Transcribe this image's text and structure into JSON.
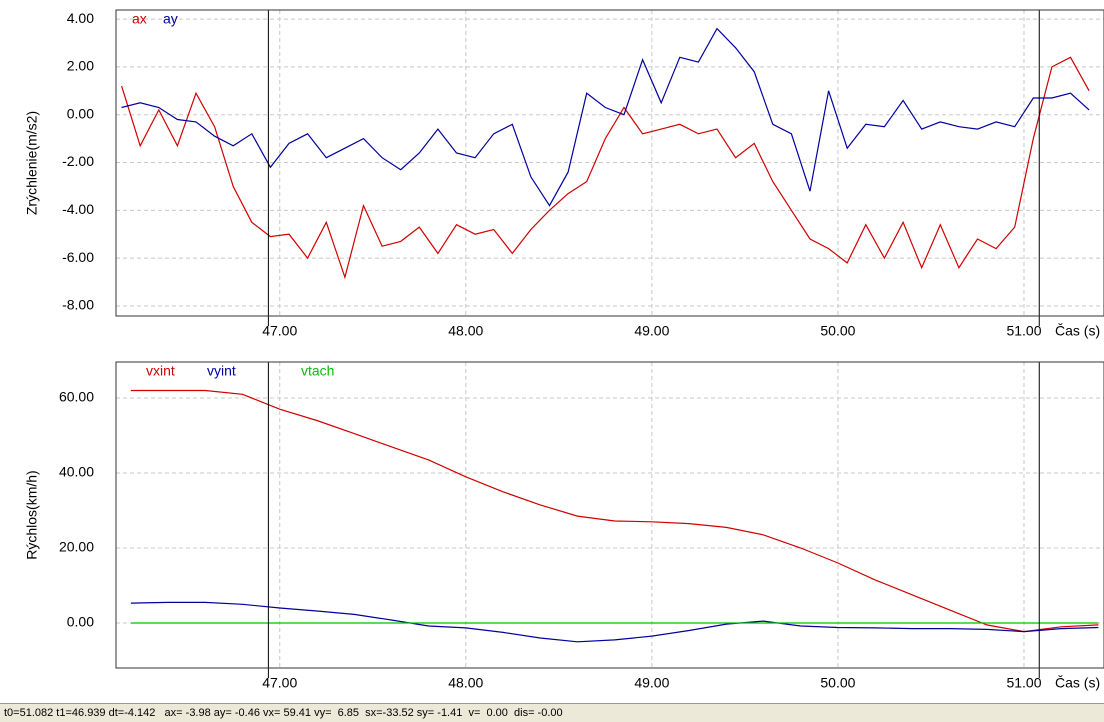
{
  "chart_data": [
    {
      "type": "line",
      "y_label": "Zrýchlenie(m/s2)",
      "x_label": "Čas (s)",
      "grid": true,
      "x": [
        46.15,
        46.25,
        46.35,
        46.45,
        46.55,
        46.65,
        46.75,
        46.85,
        46.95,
        47.05,
        47.15,
        47.25,
        47.35,
        47.45,
        47.55,
        47.65,
        47.75,
        47.85,
        47.95,
        48.05,
        48.15,
        48.25,
        48.35,
        48.45,
        48.55,
        48.65,
        48.75,
        48.85,
        48.95,
        49.05,
        49.15,
        49.25,
        49.35,
        49.45,
        49.55,
        49.65,
        49.75,
        49.85,
        49.95,
        50.05,
        50.15,
        50.25,
        50.35,
        50.45,
        50.55,
        50.65,
        50.75,
        50.85,
        50.95,
        51.05,
        51.15,
        51.25,
        51.35
      ],
      "series": [
        {
          "name": "ax",
          "color": "#d00000",
          "values": [
            1.2,
            -1.3,
            0.2,
            -1.3,
            0.9,
            -0.5,
            -3.0,
            -4.5,
            -5.1,
            -5.0,
            -6.0,
            -4.5,
            -6.8,
            -3.8,
            -5.5,
            -5.3,
            -4.7,
            -5.8,
            -4.6,
            -5.0,
            -4.8,
            -5.8,
            -4.8,
            -4.0,
            -3.3,
            -2.8,
            -1.0,
            0.3,
            -0.8,
            -0.6,
            -0.4,
            -0.8,
            -0.6,
            -1.8,
            -1.2,
            -2.8,
            -4.0,
            -5.2,
            -5.6,
            -6.2,
            -4.6,
            -6.0,
            -4.5,
            -6.4,
            -4.6,
            -6.4,
            -5.2,
            -5.6,
            -4.7,
            -1.0,
            2.0,
            2.4,
            1.0
          ]
        },
        {
          "name": "ay",
          "color": "#0000a0",
          "values": [
            0.3,
            0.5,
            0.3,
            -0.2,
            -0.3,
            -0.9,
            -1.3,
            -0.8,
            -2.2,
            -1.2,
            -0.8,
            -1.8,
            -1.4,
            -1.0,
            -1.8,
            -2.3,
            -1.6,
            -0.6,
            -1.6,
            -1.8,
            -0.8,
            -0.4,
            -2.6,
            -3.8,
            -2.4,
            0.9,
            0.3,
            0.0,
            2.3,
            0.5,
            2.4,
            2.2,
            3.6,
            2.8,
            1.8,
            -0.4,
            -0.8,
            -3.2,
            1.0,
            -1.4,
            -0.4,
            -0.5,
            0.6,
            -0.6,
            -0.3,
            -0.5,
            -0.6,
            -0.3,
            -0.5,
            0.7,
            0.7,
            0.9,
            0.2
          ]
        }
      ],
      "xlim": [
        46.12,
        51.43
      ],
      "ylim": [
        -8.42,
        4.38
      ],
      "xticks": [
        {
          "value": 47,
          "label": "47.00"
        },
        {
          "value": 48,
          "label": "48.00"
        },
        {
          "value": 49,
          "label": "49.00"
        },
        {
          "value": 50,
          "label": "50.00"
        },
        {
          "value": 51,
          "label": "51.00"
        }
      ],
      "yticks": [
        {
          "value": 4,
          "label": "4.00"
        },
        {
          "value": 2,
          "label": "2.00"
        },
        {
          "value": 0,
          "label": "0.00"
        },
        {
          "value": -2,
          "label": "-2.00"
        },
        {
          "value": -4,
          "label": "-4.00"
        },
        {
          "value": -6,
          "label": "-6.00"
        },
        {
          "value": -8,
          "label": "-8.00"
        }
      ],
      "cursors": [
        46.939,
        51.082
      ]
    },
    {
      "type": "line",
      "y_label": "Rýchlos(km/h)",
      "x_label": "Čas (s)",
      "grid": true,
      "x": [
        46.2,
        46.4,
        46.6,
        46.8,
        47.0,
        47.2,
        47.4,
        47.6,
        47.8,
        48.0,
        48.2,
        48.4,
        48.6,
        48.8,
        49.0,
        49.2,
        49.4,
        49.6,
        49.8,
        50.0,
        50.2,
        50.4,
        50.6,
        50.8,
        51.0,
        51.2,
        51.4
      ],
      "series": [
        {
          "name": "vxint",
          "color": "#d00000",
          "values": [
            62,
            62,
            62,
            61,
            57,
            54,
            50.5,
            47,
            43.5,
            39,
            35,
            31.5,
            28.5,
            27.2,
            27,
            26.5,
            25.5,
            23.5,
            20,
            16,
            11.5,
            7.5,
            3.5,
            -0.5,
            -2.3,
            -1,
            -0.5
          ]
        },
        {
          "name": "vyint",
          "color": "#0000a0",
          "values": [
            5.3,
            5.5,
            5.5,
            5.0,
            4.0,
            3.2,
            2.3,
            0.8,
            -0.8,
            -1.3,
            -2.5,
            -4.0,
            -5.0,
            -4.5,
            -3.5,
            -2.0,
            -0.3,
            0.5,
            -0.8,
            -1.2,
            -1.3,
            -1.5,
            -1.5,
            -1.7,
            -2.3,
            -1.5,
            -1.2
          ]
        },
        {
          "name": "vtach",
          "color": "#00c000",
          "values": [
            0,
            0,
            0,
            0,
            0,
            0,
            0,
            0,
            0,
            0,
            0,
            0,
            0,
            0,
            0,
            0,
            0,
            0,
            0,
            0,
            0,
            0,
            0,
            0,
            0,
            0,
            0
          ]
        }
      ],
      "xlim": [
        46.12,
        51.43
      ],
      "ylim": [
        -12,
        69.6
      ],
      "xticks": [
        {
          "value": 47,
          "label": "47.00"
        },
        {
          "value": 48,
          "label": "48.00"
        },
        {
          "value": 49,
          "label": "49.00"
        },
        {
          "value": 50,
          "label": "50.00"
        },
        {
          "value": 51,
          "label": "51.00"
        }
      ],
      "yticks": [
        {
          "value": 60,
          "label": "60.00"
        },
        {
          "value": 40,
          "label": "40.00"
        },
        {
          "value": 20,
          "label": "20.00"
        },
        {
          "value": 0,
          "label": "0.00"
        }
      ],
      "cursors": [
        46.939,
        51.082
      ]
    }
  ],
  "status_bar": "t0=51.082 t1=46.939 dt=-4.142   ax= -3.98 ay= -0.46 vx= 59.41 vy=  6.85  sx=-33.52 sy= -1.41  v=  0.00  dis= -0.00"
}
